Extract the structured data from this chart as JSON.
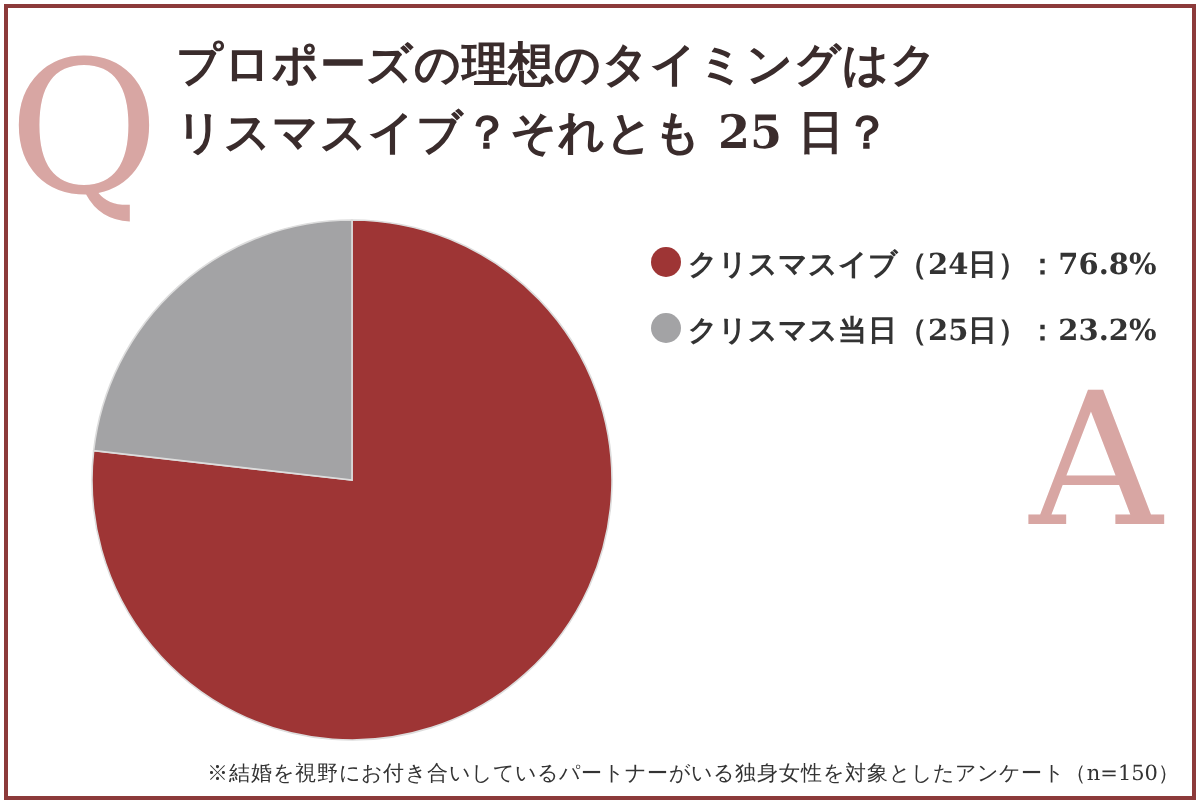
{
  "chart_data": {
    "type": "pie",
    "title": "プロポーズの理想のタイミングはクリスマスイブ？それとも 25 日？",
    "categories": [
      "クリスマスイブ（24日）：76.8%",
      "クリスマス当日（25日）：23.2%"
    ],
    "values": [
      76.8,
      23.2
    ],
    "colors": [
      "#9e3535",
      "#a3a3a5"
    ],
    "legend": "right",
    "annotations": [
      "Q",
      "A",
      "※結婚を視野にお付き合いしているパートナーがいる独身女性を対象としたアンケート（n=150）"
    ]
  }
}
